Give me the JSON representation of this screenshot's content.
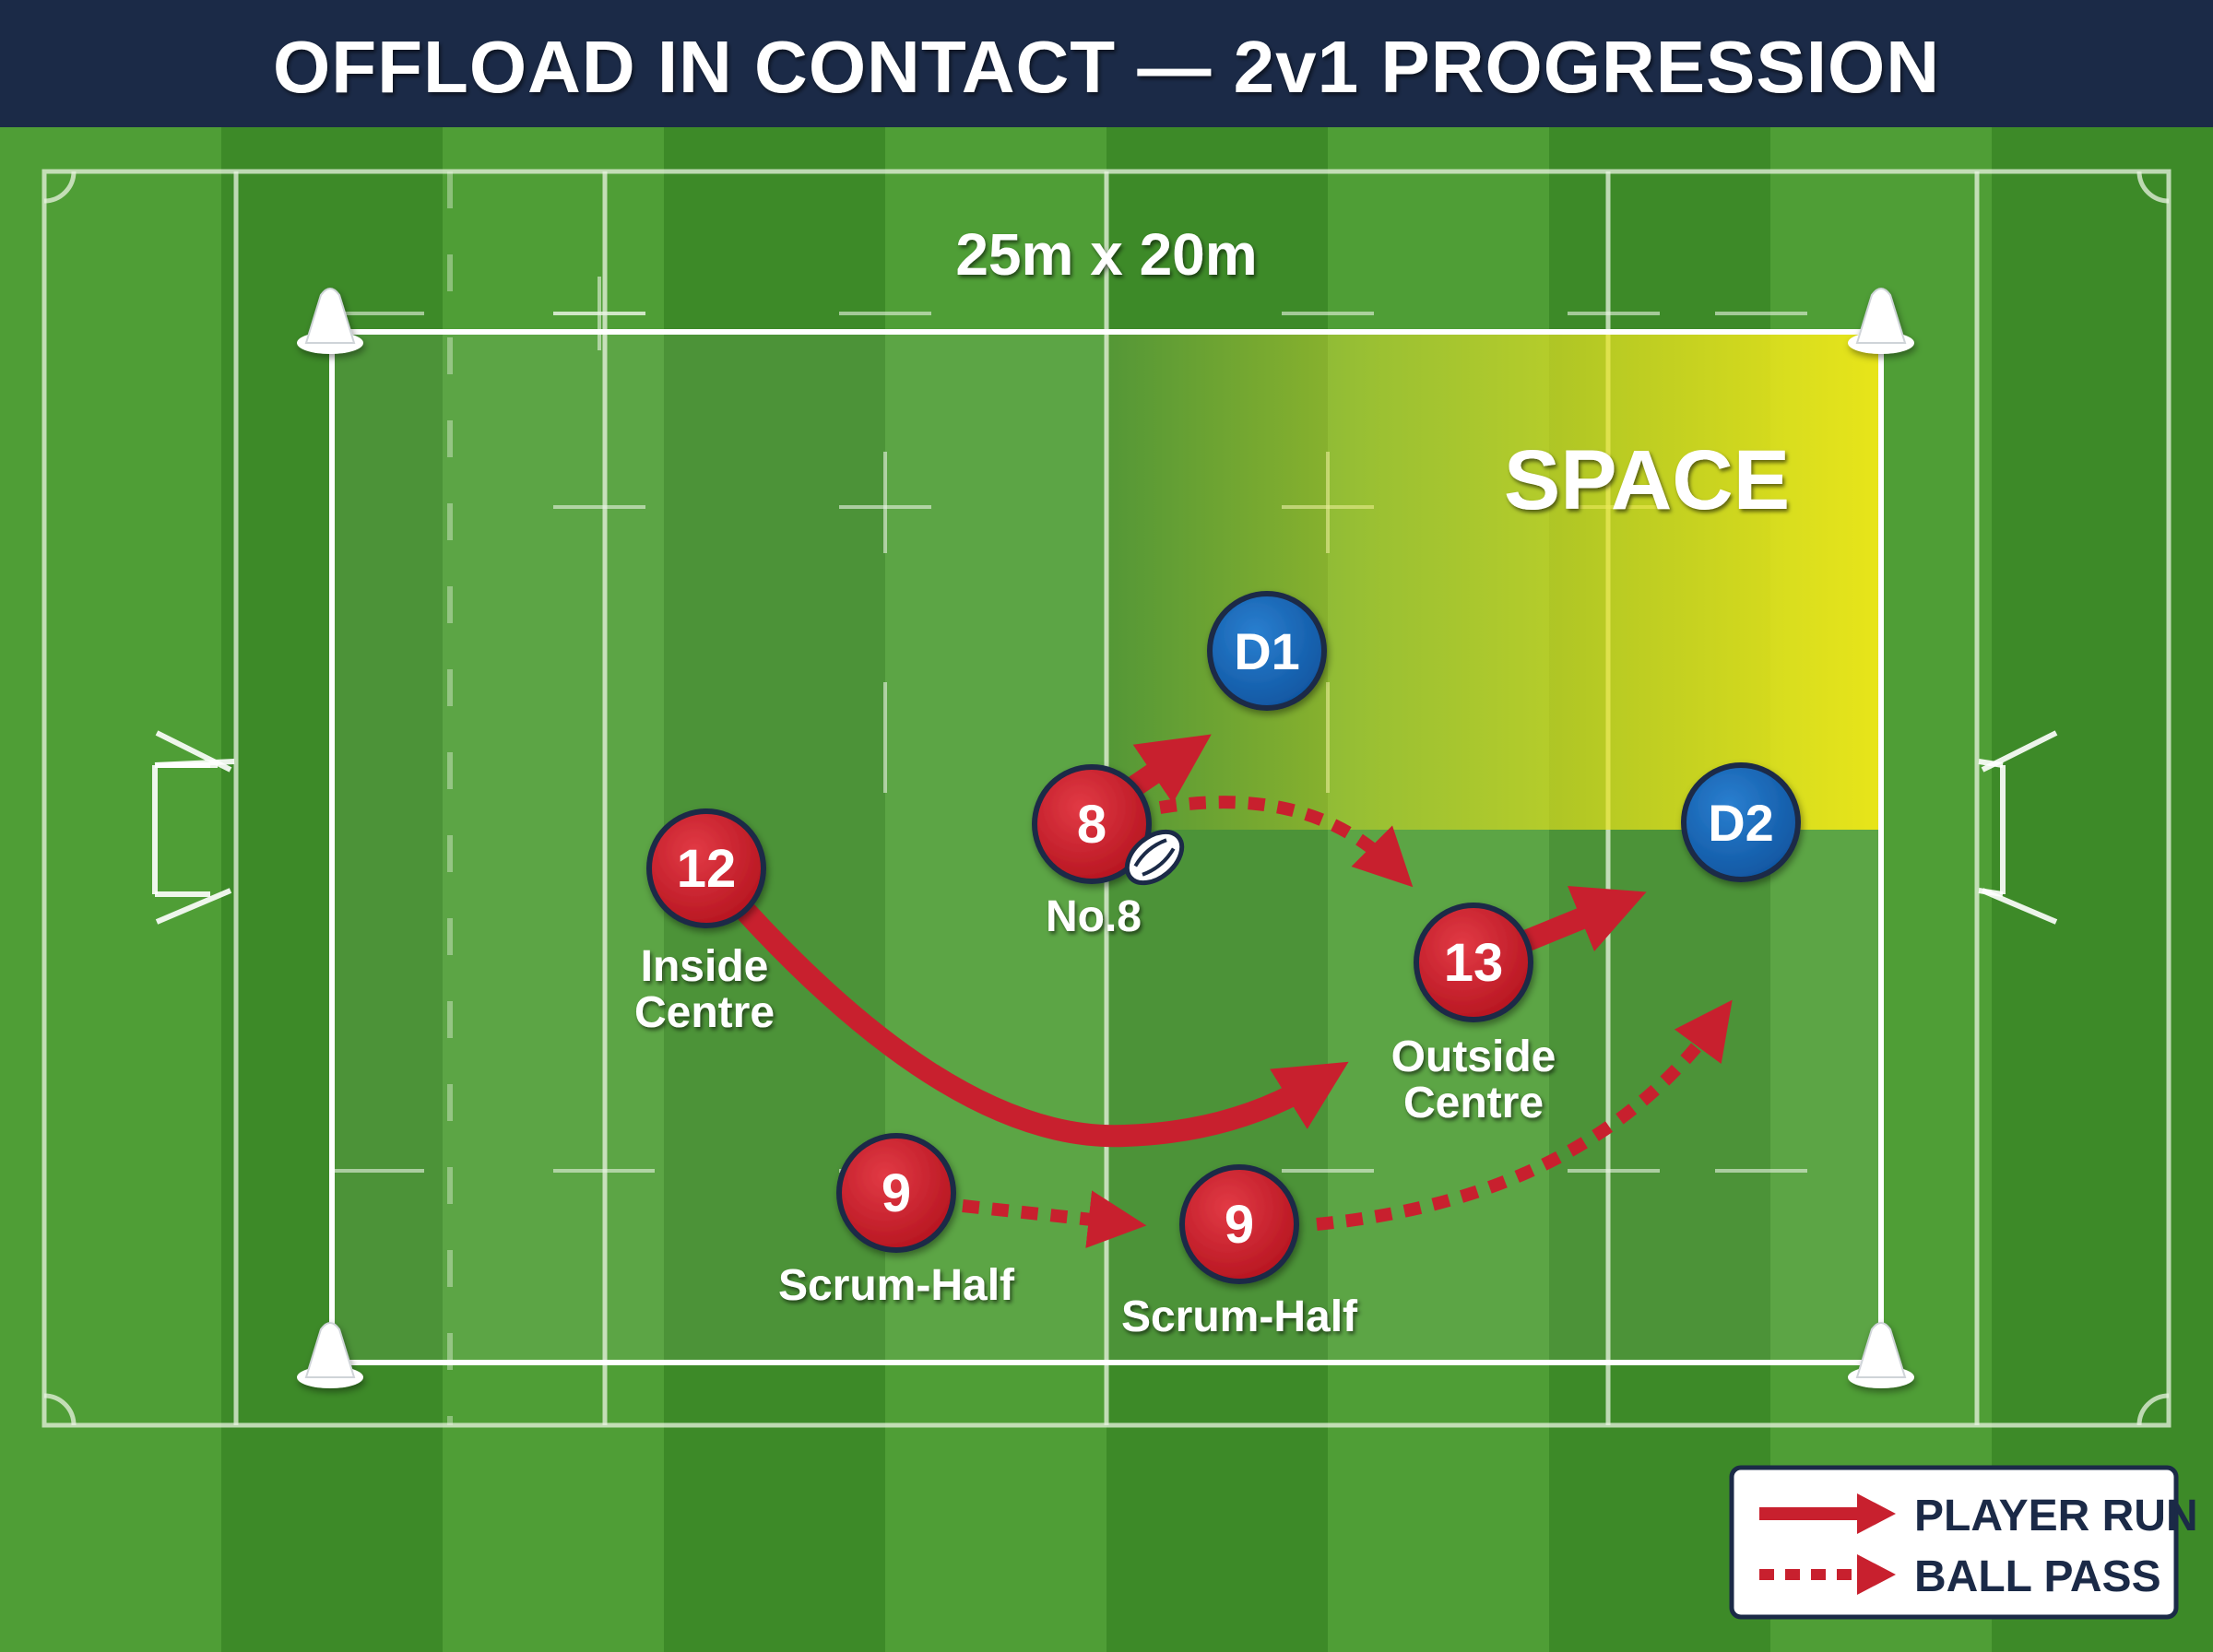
{
  "title": "OFFLOAD IN CONTACT — 2v1 PROGRESSION",
  "grid_size_label": "25m x 20m",
  "space_label": "SPACE",
  "colors": {
    "header": "#1b2a47",
    "attacker": "#c8202e",
    "defender": "#1565b3",
    "space_zone": "#e8e21c",
    "pitch_light": "#4f9e36",
    "pitch_dark": "#3d8a28"
  },
  "players": {
    "p12": {
      "number": "12",
      "label_line1": "Inside",
      "label_line2": "Centre"
    },
    "p8": {
      "number": "8",
      "label": "No.8"
    },
    "p13": {
      "number": "13",
      "label_line1": "Outside",
      "label_line2": "Centre"
    },
    "p9a": {
      "number": "9",
      "label": "Scrum-Half"
    },
    "p9b": {
      "number": "9",
      "label": "Scrum-Half"
    },
    "d1": {
      "number": "D1"
    },
    "d2": {
      "number": "D2"
    }
  },
  "legend": {
    "run_label": "PLAYER RUN",
    "pass_label": "BALL PASS"
  },
  "icons": [
    "cone-icon",
    "rugby-ball-icon",
    "goal-post-icon"
  ]
}
